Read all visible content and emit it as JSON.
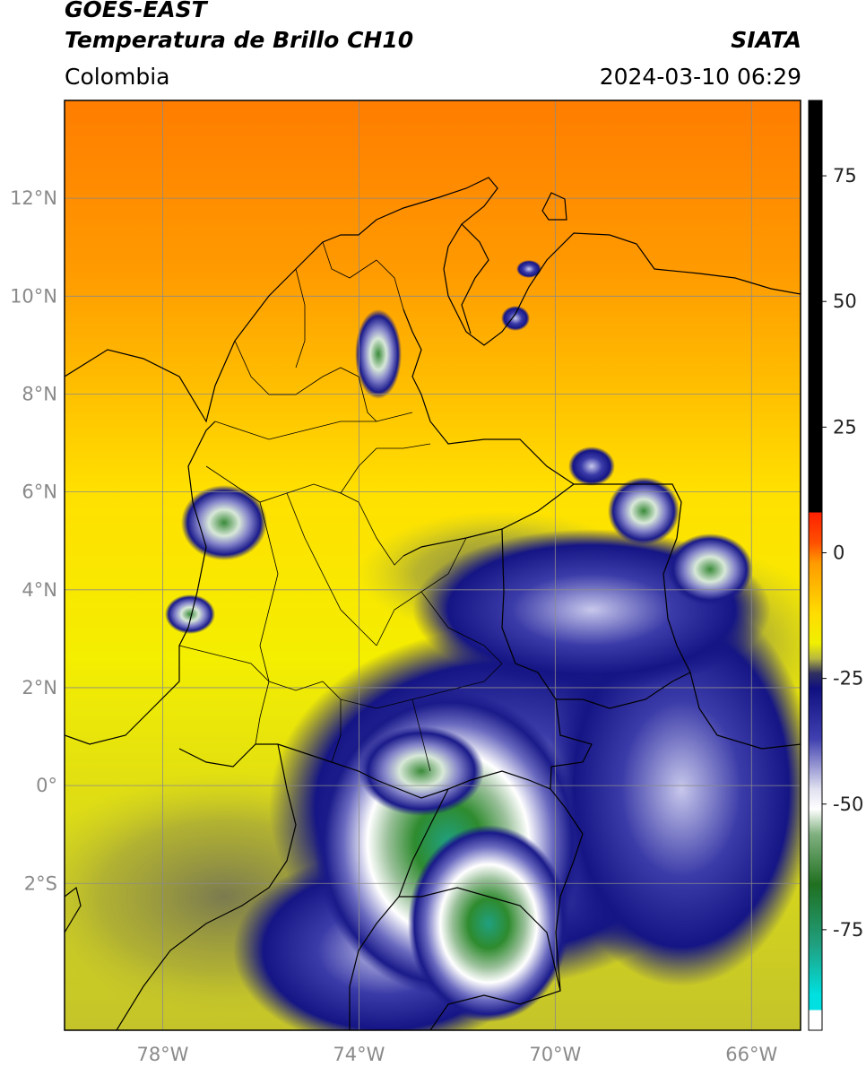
{
  "header": {
    "title_line1": "GOES-EAST",
    "title_line2": "Temperatura de Brillo CH10",
    "brand": "SIATA",
    "region": "Colombia",
    "timestamp": "2024-03-10 06:29"
  },
  "map": {
    "lon_range": [
      -80,
      -65
    ],
    "lat_range": [
      -5,
      14
    ],
    "lat_ticks": [
      {
        "value": 12,
        "label": "12°N"
      },
      {
        "value": 10,
        "label": "10°N"
      },
      {
        "value": 8,
        "label": "8°N"
      },
      {
        "value": 6,
        "label": "6°N"
      },
      {
        "value": 4,
        "label": "4°N"
      },
      {
        "value": 2,
        "label": "2°N"
      },
      {
        "value": 0,
        "label": "0°"
      },
      {
        "value": -2,
        "label": "2°S"
      }
    ],
    "lon_ticks": [
      {
        "value": -78,
        "label": "78°W"
      },
      {
        "value": -74,
        "label": "74°W"
      },
      {
        "value": -70,
        "label": "70°W"
      },
      {
        "value": -66,
        "label": "66°W"
      }
    ],
    "grid": true,
    "field_colors": {
      "warm": "#ff7a00",
      "mid": "#ffa000",
      "dry": "#ffe600",
      "olive": "#c8c81e",
      "cold": "#20208a",
      "very_cold": "#f0f0ff",
      "coldest": "#2e8b2e",
      "extreme": "#20c0a0"
    }
  },
  "colorbar": {
    "range": [
      -95,
      90
    ],
    "ticks": [
      {
        "value": 75,
        "label": "75"
      },
      {
        "value": 50,
        "label": "50"
      },
      {
        "value": 25,
        "label": "25"
      },
      {
        "value": 0,
        "label": "0"
      },
      {
        "value": -25,
        "label": "-25"
      },
      {
        "value": -50,
        "label": "-50"
      },
      {
        "value": -75,
        "label": "-75"
      }
    ],
    "stops": [
      {
        "value": 90,
        "color": "#000000"
      },
      {
        "value": 8,
        "color": "#000000"
      },
      {
        "value": 8,
        "color": "#ff2000"
      },
      {
        "value": 2,
        "color": "#ff5000"
      },
      {
        "value": -2,
        "color": "#ff9a00"
      },
      {
        "value": -12,
        "color": "#ffdc00"
      },
      {
        "value": -18,
        "color": "#f0f000"
      },
      {
        "value": -21,
        "color": "#b8b840"
      },
      {
        "value": -24,
        "color": "#303060"
      },
      {
        "value": -27,
        "color": "#101080"
      },
      {
        "value": -37,
        "color": "#4040b0"
      },
      {
        "value": -47,
        "color": "#e0e0f0"
      },
      {
        "value": -51,
        "color": "#ffffff"
      },
      {
        "value": -56,
        "color": "#80b080"
      },
      {
        "value": -66,
        "color": "#207020"
      },
      {
        "value": -78,
        "color": "#20a080"
      },
      {
        "value": -88,
        "color": "#00e0e0"
      },
      {
        "value": -91,
        "color": "#00e0e0"
      },
      {
        "value": -91,
        "color": "#ffffff"
      },
      {
        "value": -95,
        "color": "#ffffff"
      }
    ]
  }
}
